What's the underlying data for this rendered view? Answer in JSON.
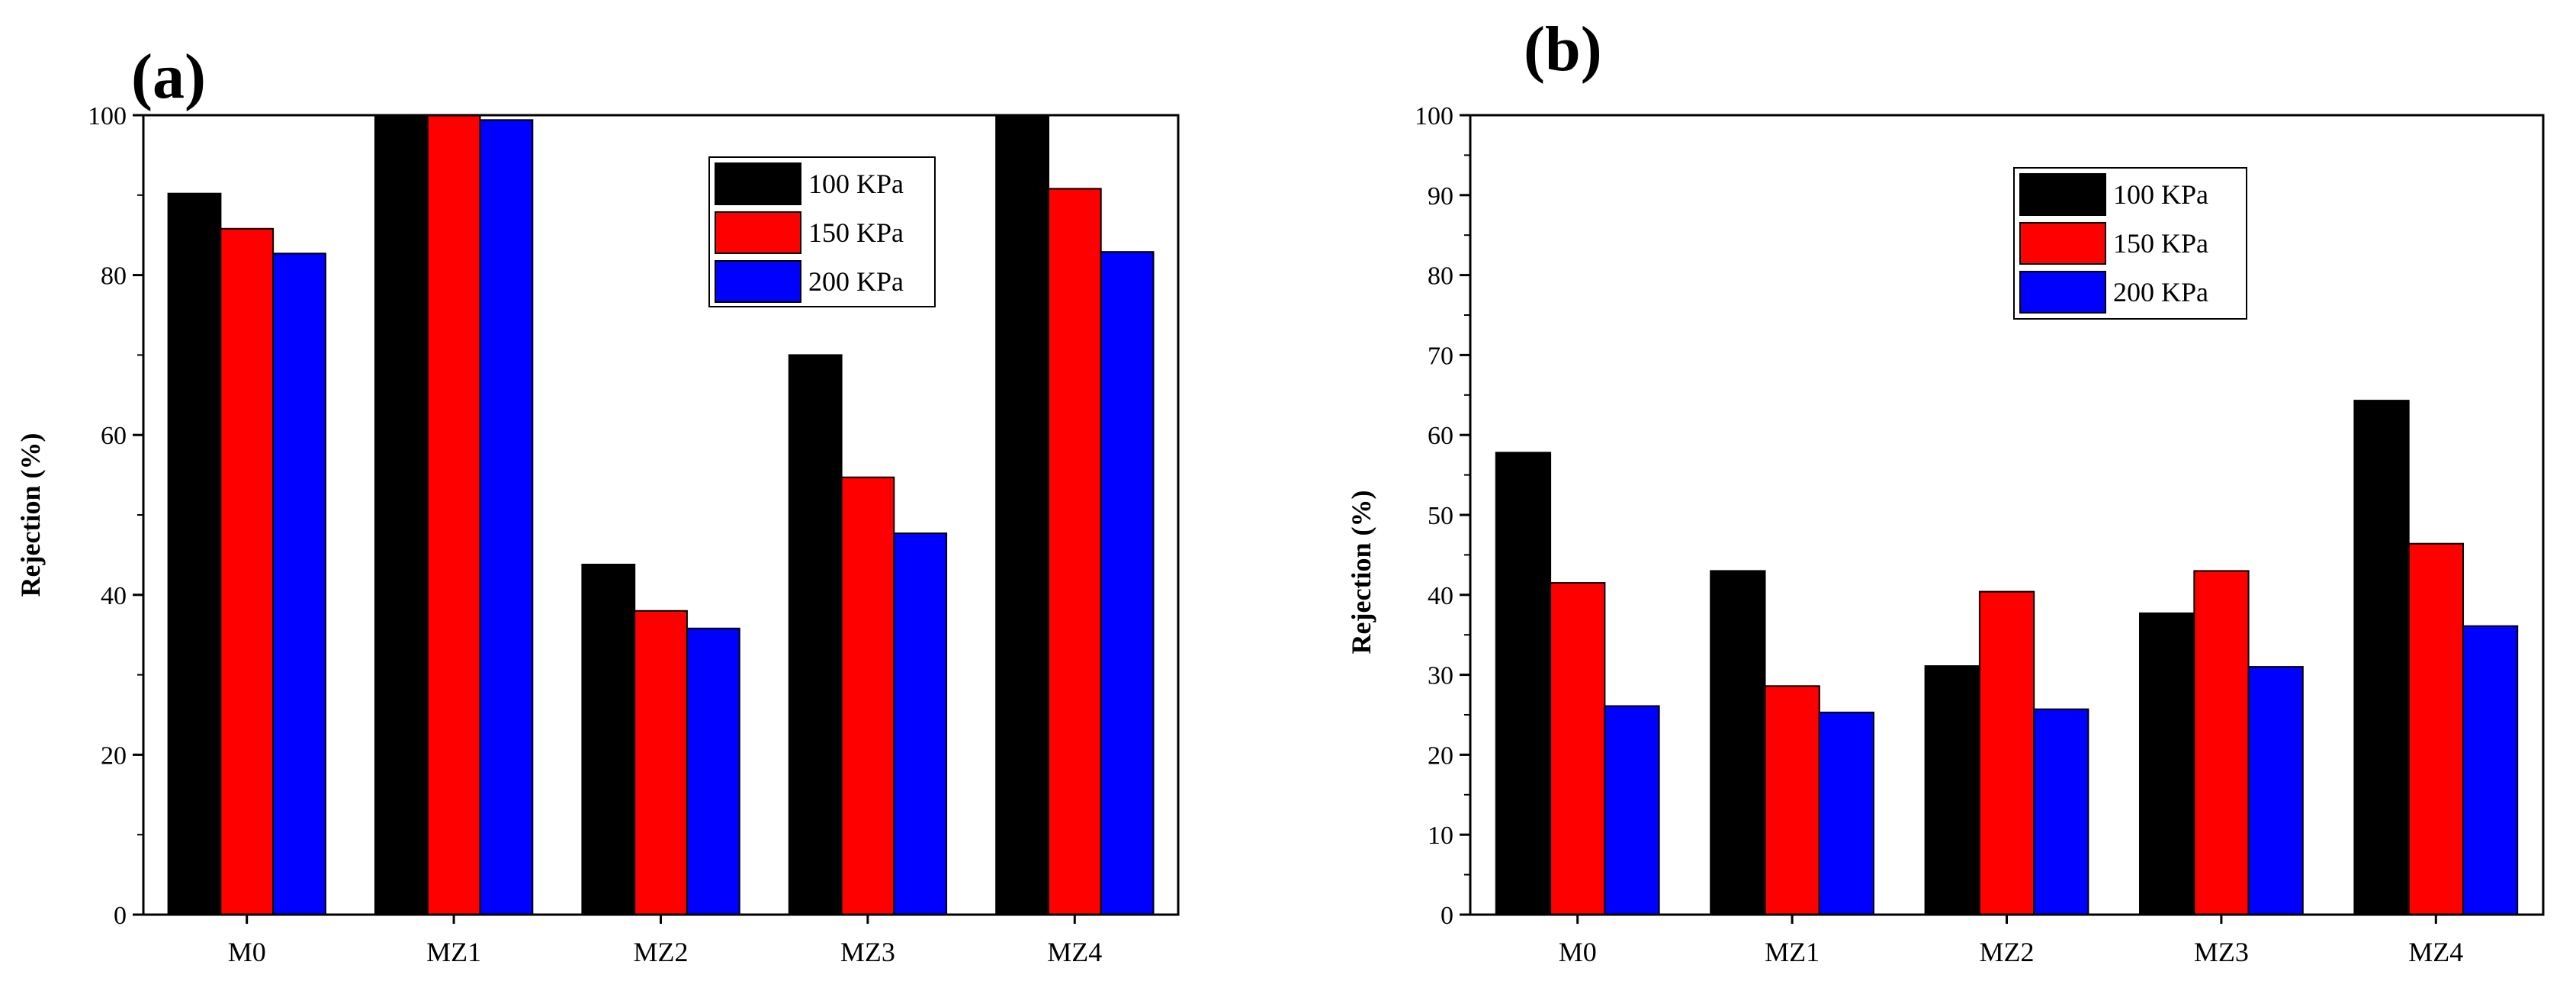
{
  "figure": {
    "panels": [
      "(a)",
      "(b)"
    ]
  },
  "chart_data": [
    {
      "type": "bar",
      "panel_label": "(a)",
      "title": "",
      "xlabel": "",
      "ylabel": "Rejection  (%)",
      "ylim": [
        0,
        100
      ],
      "yticks": [
        "0",
        "20",
        "40",
        "60",
        "80",
        "100"
      ],
      "categories": [
        "M0",
        "MZ1",
        "MZ2",
        "MZ3",
        "MZ4"
      ],
      "legend": {
        "placement": "top-right"
      },
      "series": [
        {
          "name": "100 KPa",
          "color": "#000000",
          "values": [
            90.2,
            100,
            43.8,
            70.0,
            100
          ]
        },
        {
          "name": "150 KPa",
          "color": "#ff0000",
          "values": [
            85.8,
            100,
            38.0,
            54.7,
            90.8
          ]
        },
        {
          "name": "200 KPa",
          "color": "#0000ff",
          "values": [
            82.7,
            99.4,
            35.8,
            47.7,
            82.9
          ]
        }
      ]
    },
    {
      "type": "bar",
      "panel_label": "(b)",
      "title": "",
      "xlabel": "",
      "ylabel": "Rejection  (%)",
      "ylim": [
        0,
        100
      ],
      "yticks": [
        "0",
        "10",
        "20",
        "30",
        "40",
        "50",
        "60",
        "70",
        "80",
        "90",
        "100"
      ],
      "categories": [
        "M0",
        "MZ1",
        "MZ2",
        "MZ3",
        "MZ4"
      ],
      "legend": {
        "placement": "top-center"
      },
      "series": [
        {
          "name": "100 KPa",
          "color": "#000000",
          "values": [
            57.8,
            43.0,
            31.1,
            37.7,
            64.3
          ]
        },
        {
          "name": "150 KPa",
          "color": "#ff0000",
          "values": [
            41.5,
            28.6,
            40.4,
            43.0,
            46.4
          ]
        },
        {
          "name": "200 KPa",
          "color": "#0000ff",
          "values": [
            26.1,
            25.3,
            25.7,
            31.0,
            36.1
          ]
        }
      ]
    }
  ]
}
